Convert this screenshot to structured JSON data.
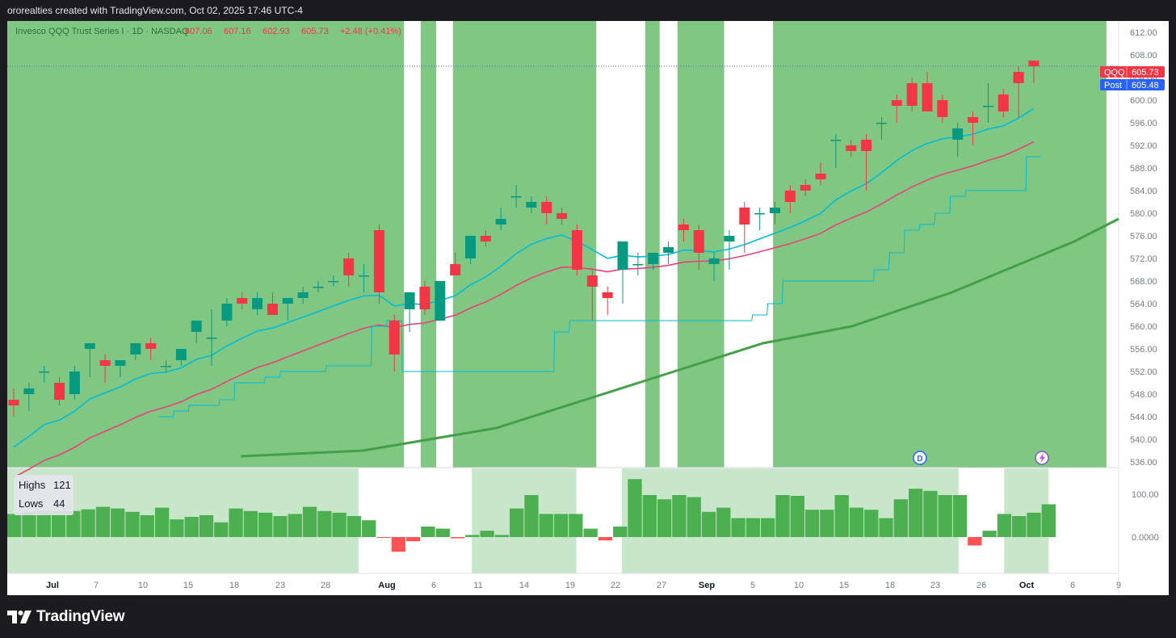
{
  "header": {
    "attribution": "ororealties created with TradingView.com, Oct 02, 2025 17:46 UTC-4"
  },
  "legend": {
    "title": "Invesco QQQ Trust Series I · 1D · NASDAQ",
    "open": "607.06",
    "high": "607.16",
    "low": "602.93",
    "close": "605.73",
    "change": "+2.48 (+0.41%)"
  },
  "price_badges": [
    {
      "label": "QQQ",
      "value": "605.73",
      "color": "#f23645"
    },
    {
      "label": "Post",
      "value": "605.48",
      "color": "#2962ff"
    }
  ],
  "panel_markers": {
    "dividend": "D"
  },
  "oscillator": {
    "highs_label": "Highs",
    "highs_value": "121",
    "lows_label": "Lows",
    "lows_value": "44"
  },
  "footer": {
    "brand": "TradingView"
  },
  "colors": {
    "up": "#089981",
    "down": "#f23645",
    "zone": "#81c784",
    "zone_light": "#c8e6c9",
    "ema_fast": "#00bcd4",
    "ema_mid": "#ec407a",
    "sma_slow": "#43a047",
    "bars": "#4caf50"
  },
  "chart_data": {
    "type": "candlestick",
    "y_axis": {
      "range": [
        535,
        614
      ],
      "ticks": [
        536,
        540,
        544,
        548,
        552,
        556,
        560,
        564,
        568,
        572,
        576,
        580,
        584,
        588,
        592,
        596,
        600,
        604,
        608,
        612
      ]
    },
    "x_tick_labels": [
      {
        "label": "Jul",
        "bold": true
      },
      {
        "label": "7"
      },
      {
        "label": "10"
      },
      {
        "label": "15"
      },
      {
        "label": "18"
      },
      {
        "label": "23"
      },
      {
        "label": "28"
      },
      {
        "label": "Aug",
        "bold": true
      },
      {
        "label": "6"
      },
      {
        "label": "11"
      },
      {
        "label": "14"
      },
      {
        "label": "19"
      },
      {
        "label": "22"
      },
      {
        "label": "27"
      },
      {
        "label": "Sep",
        "bold": true
      },
      {
        "label": "5"
      },
      {
        "label": "10"
      },
      {
        "label": "15"
      },
      {
        "label": "18"
      },
      {
        "label": "23"
      },
      {
        "label": "26"
      },
      {
        "label": "Oct",
        "bold": true
      },
      {
        "label": "6"
      },
      {
        "label": "9"
      }
    ],
    "candles": [
      [
        547,
        549,
        544,
        546
      ],
      [
        548,
        550,
        545,
        549
      ],
      [
        552,
        553,
        550,
        552
      ],
      [
        550,
        551,
        546,
        547
      ],
      [
        548,
        553,
        547,
        552
      ],
      [
        556,
        557,
        551,
        557
      ],
      [
        554,
        555,
        550,
        553
      ],
      [
        553,
        554,
        551,
        554
      ],
      [
        555,
        557,
        554,
        557
      ],
      [
        557,
        558,
        554,
        556
      ],
      [
        553,
        554,
        552,
        553
      ],
      [
        554,
        556,
        553,
        556
      ],
      [
        559,
        561,
        557,
        561
      ],
      [
        558,
        563,
        553,
        558
      ],
      [
        561,
        565,
        560,
        564
      ],
      [
        565,
        566,
        563,
        564
      ],
      [
        563,
        566,
        562,
        565
      ],
      [
        564,
        566,
        562,
        562
      ],
      [
        564,
        565,
        561,
        565
      ],
      [
        565,
        567,
        564,
        566
      ],
      [
        567,
        568,
        566,
        567
      ],
      [
        568,
        569,
        567,
        568
      ],
      [
        572,
        573,
        567,
        569
      ],
      [
        569,
        571,
        566,
        569
      ],
      [
        577,
        578,
        564,
        566
      ],
      [
        561,
        562,
        552,
        555
      ],
      [
        563,
        566,
        559,
        566
      ],
      [
        567,
        568,
        562,
        563
      ],
      [
        561,
        568,
        561,
        568
      ],
      [
        571,
        573,
        569,
        569
      ],
      [
        572,
        576,
        571,
        576
      ],
      [
        576,
        577,
        574,
        575
      ],
      [
        578,
        581,
        577,
        579
      ],
      [
        583,
        585,
        581,
        583
      ],
      [
        581,
        583,
        580,
        582
      ],
      [
        582,
        583,
        578,
        580
      ],
      [
        580,
        581,
        578,
        579
      ],
      [
        577,
        578,
        569,
        570
      ],
      [
        569,
        570,
        561,
        567
      ],
      [
        566,
        567,
        562,
        565
      ],
      [
        570,
        575,
        564,
        575
      ],
      [
        571,
        573,
        569,
        571
      ],
      [
        571,
        573,
        570,
        573
      ],
      [
        573,
        575,
        571,
        574
      ],
      [
        578,
        579,
        575,
        577
      ],
      [
        577,
        578,
        570,
        573
      ],
      [
        571,
        573,
        568,
        572
      ],
      [
        575,
        577,
        570,
        576
      ],
      [
        581,
        582,
        573,
        578
      ],
      [
        580,
        581,
        577,
        580
      ],
      [
        580,
        582,
        578,
        581
      ],
      [
        584,
        585,
        580,
        582
      ],
      [
        585,
        586,
        583,
        584
      ],
      [
        587,
        589,
        585,
        586
      ],
      [
        593,
        594,
        588,
        593
      ],
      [
        592,
        593,
        590,
        591
      ],
      [
        593,
        594,
        584,
        591
      ],
      [
        596,
        597,
        593,
        596
      ],
      [
        600,
        601,
        596,
        599
      ],
      [
        603,
        604,
        598,
        599
      ],
      [
        603,
        605,
        598,
        598
      ],
      [
        600,
        601,
        596,
        597
      ],
      [
        593,
        596,
        590,
        595
      ],
      [
        597,
        598,
        592,
        596
      ],
      [
        599,
        603,
        596,
        599
      ],
      [
        601,
        602,
        597,
        598
      ],
      [
        605,
        606,
        597,
        603
      ],
      [
        607,
        607,
        603,
        606
      ]
    ],
    "sma_slow": [
      [
        0.21,
        537
      ],
      [
        0.32,
        538
      ],
      [
        0.44,
        542
      ],
      [
        0.52,
        547
      ],
      [
        0.6,
        552
      ],
      [
        0.68,
        557
      ],
      [
        0.76,
        560
      ],
      [
        0.85,
        566
      ],
      [
        0.96,
        575
      ],
      [
        1.0,
        579
      ]
    ],
    "green_zones": [
      [
        0.0,
        0.357
      ],
      [
        0.372,
        0.386
      ],
      [
        0.401,
        0.53
      ],
      [
        0.574,
        0.587
      ],
      [
        0.603,
        0.645
      ],
      [
        0.689,
        0.989
      ]
    ],
    "oscillator_values": [
      55,
      60,
      63,
      62,
      62,
      66,
      72,
      68,
      60,
      52,
      70,
      42,
      48,
      52,
      35,
      68,
      62,
      58,
      50,
      55,
      72,
      62,
      58,
      50,
      40,
      -2,
      -35,
      -10,
      25,
      20,
      -3,
      5,
      15,
      5,
      68,
      100,
      55,
      55,
      55,
      20,
      -8,
      25,
      138,
      100,
      90,
      100,
      95,
      60,
      70,
      45,
      45,
      45,
      100,
      98,
      65,
      65,
      100,
      70,
      65,
      45,
      90,
      115,
      110,
      100,
      100,
      -20,
      15,
      55,
      50,
      58,
      78
    ],
    "oscillator_axis": {
      "labels": [
        "100.00",
        "0.0000"
      ]
    }
  }
}
